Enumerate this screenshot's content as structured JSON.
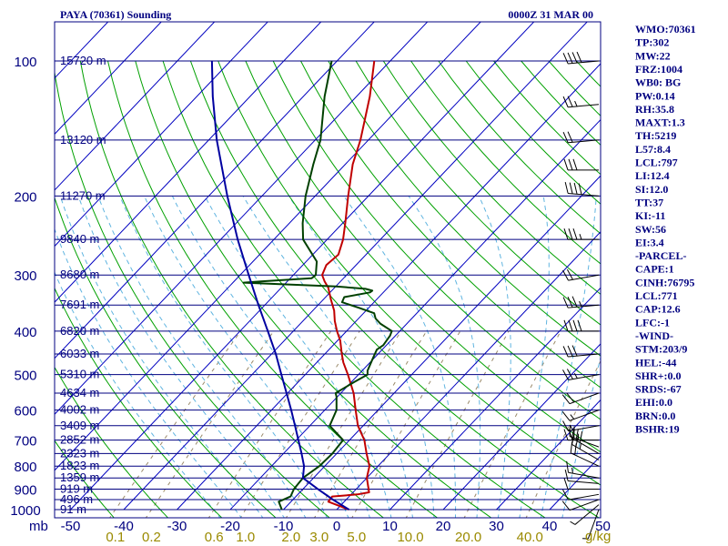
{
  "chart_data": {
    "type": "line",
    "title": "PAYA (70361) Sounding",
    "time": "0000Z 31 MAR 00",
    "pressure_unit": "mb",
    "mixing_ratio_unit": "g/kg",
    "pressure_ticks": [
      100,
      200,
      300,
      400,
      500,
      600,
      700,
      800,
      900,
      1000
    ],
    "height_labels": [
      {
        "p": 100,
        "label": "15720 m"
      },
      {
        "p": 150,
        "label": "13120 m"
      },
      {
        "p": 200,
        "label": "11270 m"
      },
      {
        "p": 250,
        "label": "9840 m"
      },
      {
        "p": 300,
        "label": "8680 m"
      },
      {
        "p": 350,
        "label": "7691 m"
      },
      {
        "p": 400,
        "label": "6820 m"
      },
      {
        "p": 450,
        "label": "6033 m"
      },
      {
        "p": 500,
        "label": "5310 m"
      },
      {
        "p": 550,
        "label": "4634 m"
      },
      {
        "p": 600,
        "label": "4002 m"
      },
      {
        "p": 650,
        "label": "3409 m"
      },
      {
        "p": 700,
        "label": "2852 m"
      },
      {
        "p": 750,
        "label": "2323 m"
      },
      {
        "p": 800,
        "label": "1823 m"
      },
      {
        "p": 850,
        "label": "1359 m"
      },
      {
        "p": 900,
        "label": "919 m"
      },
      {
        "p": 950,
        "label": "496 m"
      },
      {
        "p": 1000,
        "label": "91 m"
      }
    ],
    "temperature_ticks": [
      "-50",
      "-40",
      "-30",
      "-20",
      "-10",
      "0",
      "10",
      "20",
      "30",
      "40",
      "50"
    ],
    "mixing_ratio_ticks": [
      {
        "w": 0.1,
        "label": "0.1"
      },
      {
        "w": 0.2,
        "label": "0.2"
      },
      {
        "w": 0.6,
        "label": "0.6"
      },
      {
        "w": 1.0,
        "label": "1.0"
      },
      {
        "w": 2.0,
        "label": "2.0"
      },
      {
        "w": 3.0,
        "label": "3.0"
      },
      {
        "w": 5.0,
        "label": "5.0"
      },
      {
        "w": 10.0,
        "label": "10.0"
      },
      {
        "w": 20.0,
        "label": "20.0"
      },
      {
        "w": 40.0,
        "label": "40.0"
      }
    ],
    "series": [
      {
        "name": "Temperature",
        "color": "#c00000",
        "points": [
          [
            1000,
            2.3
          ],
          [
            960,
            -3.0
          ],
          [
            935,
            -3.2
          ],
          [
            925,
            1.2
          ],
          [
            915,
            3.0
          ],
          [
            850,
            0.0
          ],
          [
            800,
            -1.6
          ],
          [
            750,
            -4.4
          ],
          [
            700,
            -7.2
          ],
          [
            650,
            -11.0
          ],
          [
            600,
            -14.2
          ],
          [
            550,
            -17.6
          ],
          [
            500,
            -22.0
          ],
          [
            470,
            -25.0
          ],
          [
            450,
            -26.8
          ],
          [
            420,
            -29.5
          ],
          [
            400,
            -31.8
          ],
          [
            380,
            -34.0
          ],
          [
            360,
            -36.0
          ],
          [
            340,
            -38.6
          ],
          [
            320,
            -41.2
          ],
          [
            310,
            -43.0
          ],
          [
            300,
            -44.6
          ],
          [
            285,
            -45.6
          ],
          [
            270,
            -45.2
          ],
          [
            250,
            -47.0
          ],
          [
            230,
            -49.5
          ],
          [
            200,
            -53.8
          ],
          [
            170,
            -58.6
          ],
          [
            150,
            -61.5
          ],
          [
            120,
            -67.5
          ],
          [
            100,
            -73.0
          ]
        ]
      },
      {
        "name": "Dewpoint",
        "color": "#004000",
        "points": [
          [
            1000,
            -10.3
          ],
          [
            960,
            -12.3
          ],
          [
            935,
            -11.0
          ],
          [
            900,
            -11.7
          ],
          [
            850,
            -12.0
          ],
          [
            800,
            -11.0
          ],
          [
            750,
            -10.8
          ],
          [
            700,
            -11.2
          ],
          [
            650,
            -16.3
          ],
          [
            600,
            -17.8
          ],
          [
            560,
            -20.2
          ],
          [
            550,
            -21.0
          ],
          [
            520,
            -19.5
          ],
          [
            500,
            -18.3
          ],
          [
            490,
            -19.0
          ],
          [
            460,
            -20.2
          ],
          [
            440,
            -21.0
          ],
          [
            430,
            -20.6
          ],
          [
            410,
            -21.0
          ],
          [
            400,
            -21.5
          ],
          [
            385,
            -25.0
          ],
          [
            375,
            -26.8
          ],
          [
            365,
            -28.0
          ],
          [
            355,
            -31.8
          ],
          [
            345,
            -36.0
          ],
          [
            336,
            -36.5
          ],
          [
            328,
            -32.5
          ],
          [
            325,
            -32.4
          ],
          [
            322,
            -34.0
          ],
          [
            318,
            -40.0
          ],
          [
            314,
            -52.0
          ],
          [
            312,
            -58.0
          ],
          [
            310,
            -55.0
          ],
          [
            305,
            -46.0
          ],
          [
            300,
            -45.8
          ],
          [
            280,
            -48.0
          ],
          [
            250,
            -54.5
          ],
          [
            230,
            -57.5
          ],
          [
            200,
            -61.8
          ],
          [
            170,
            -66.0
          ],
          [
            150,
            -69.0
          ],
          [
            120,
            -76.0
          ],
          [
            100,
            -81.0
          ]
        ]
      },
      {
        "name": "Parcel",
        "color": "#0000a0",
        "points": [
          [
            1000,
            2.3
          ],
          [
            950,
            -2.5
          ],
          [
            900,
            -7.2
          ],
          [
            850,
            -12.0
          ],
          [
            800,
            -13.9
          ],
          [
            750,
            -16.6
          ],
          [
            700,
            -19.6
          ],
          [
            650,
            -22.8
          ],
          [
            600,
            -26.3
          ],
          [
            550,
            -30.2
          ],
          [
            500,
            -34.5
          ],
          [
            450,
            -39.2
          ],
          [
            400,
            -44.8
          ],
          [
            350,
            -51.2
          ],
          [
            300,
            -58.4
          ],
          [
            250,
            -66.8
          ],
          [
            200,
            -76.5
          ],
          [
            150,
            -88.5
          ],
          [
            120,
            -97.0
          ],
          [
            100,
            -103.5
          ]
        ]
      }
    ],
    "wind_barbs": [
      {
        "p": 1000,
        "dir": 200,
        "kt": 5
      },
      {
        "p": 975,
        "dir": 230,
        "kt": 8
      },
      {
        "p": 950,
        "dir": 250,
        "kt": 10
      },
      {
        "p": 925,
        "dir": 260,
        "kt": 12
      },
      {
        "p": 900,
        "dir": 270,
        "kt": 12
      },
      {
        "p": 875,
        "dir": 275,
        "kt": 14
      },
      {
        "p": 850,
        "dir": 280,
        "kt": 15
      },
      {
        "p": 800,
        "dir": 295,
        "kt": 20
      },
      {
        "p": 775,
        "dir": 300,
        "kt": 25
      },
      {
        "p": 750,
        "dir": 300,
        "kt": 30
      },
      {
        "p": 725,
        "dir": 290,
        "kt": 25
      },
      {
        "p": 700,
        "dir": 270,
        "kt": 20
      },
      {
        "p": 650,
        "dir": 260,
        "kt": 15
      },
      {
        "p": 600,
        "dir": 250,
        "kt": 15
      },
      {
        "p": 550,
        "dir": 250,
        "kt": 20
      },
      {
        "p": 500,
        "dir": 260,
        "kt": 25
      },
      {
        "p": 450,
        "dir": 265,
        "kt": 30
      },
      {
        "p": 400,
        "dir": 270,
        "kt": 40
      },
      {
        "p": 350,
        "dir": 265,
        "kt": 35
      },
      {
        "p": 300,
        "dir": 260,
        "kt": 20
      },
      {
        "p": 250,
        "dir": 270,
        "kt": 35
      },
      {
        "p": 200,
        "dir": 275,
        "kt": 40
      },
      {
        "p": 175,
        "dir": 270,
        "kt": 30
      },
      {
        "p": 150,
        "dir": 265,
        "kt": 20
      },
      {
        "p": 125,
        "dir": 265,
        "kt": 25
      },
      {
        "p": 100,
        "dir": 265,
        "kt": 40
      }
    ]
  },
  "indices": [
    "WMO:70361",
    "TP:302",
    "MW:22",
    "FRZ:1004",
    "WB0: BG",
    "PW:0.14",
    "RH:35.8",
    "MAXT:1.3",
    "TH:5219",
    "L57:8.4",
    "LCL:797",
    "LI:12.4",
    "SI:12.0",
    "TT:37",
    "KI:-11",
    "SW:56",
    "EI:3.4",
    "-PARCEL-",
    "CAPE:1",
    "CINH:76795",
    "LCL:771",
    "CAP:12.6",
    "LFC:-1",
    "-WIND-",
    "STM:203/9",
    "HEL:-44",
    "SHR+:0.0",
    "SRDS:-67",
    "EHI:0.0",
    "BRN:0.0",
    "BSHR:19"
  ],
  "colors": {
    "isobar": "#000080",
    "isotherm": "#0000c0",
    "dry_adiabat": "#00a000",
    "moist_adiabat": "#5fb4e0",
    "mixing_ratio": "#9a8a6a"
  }
}
